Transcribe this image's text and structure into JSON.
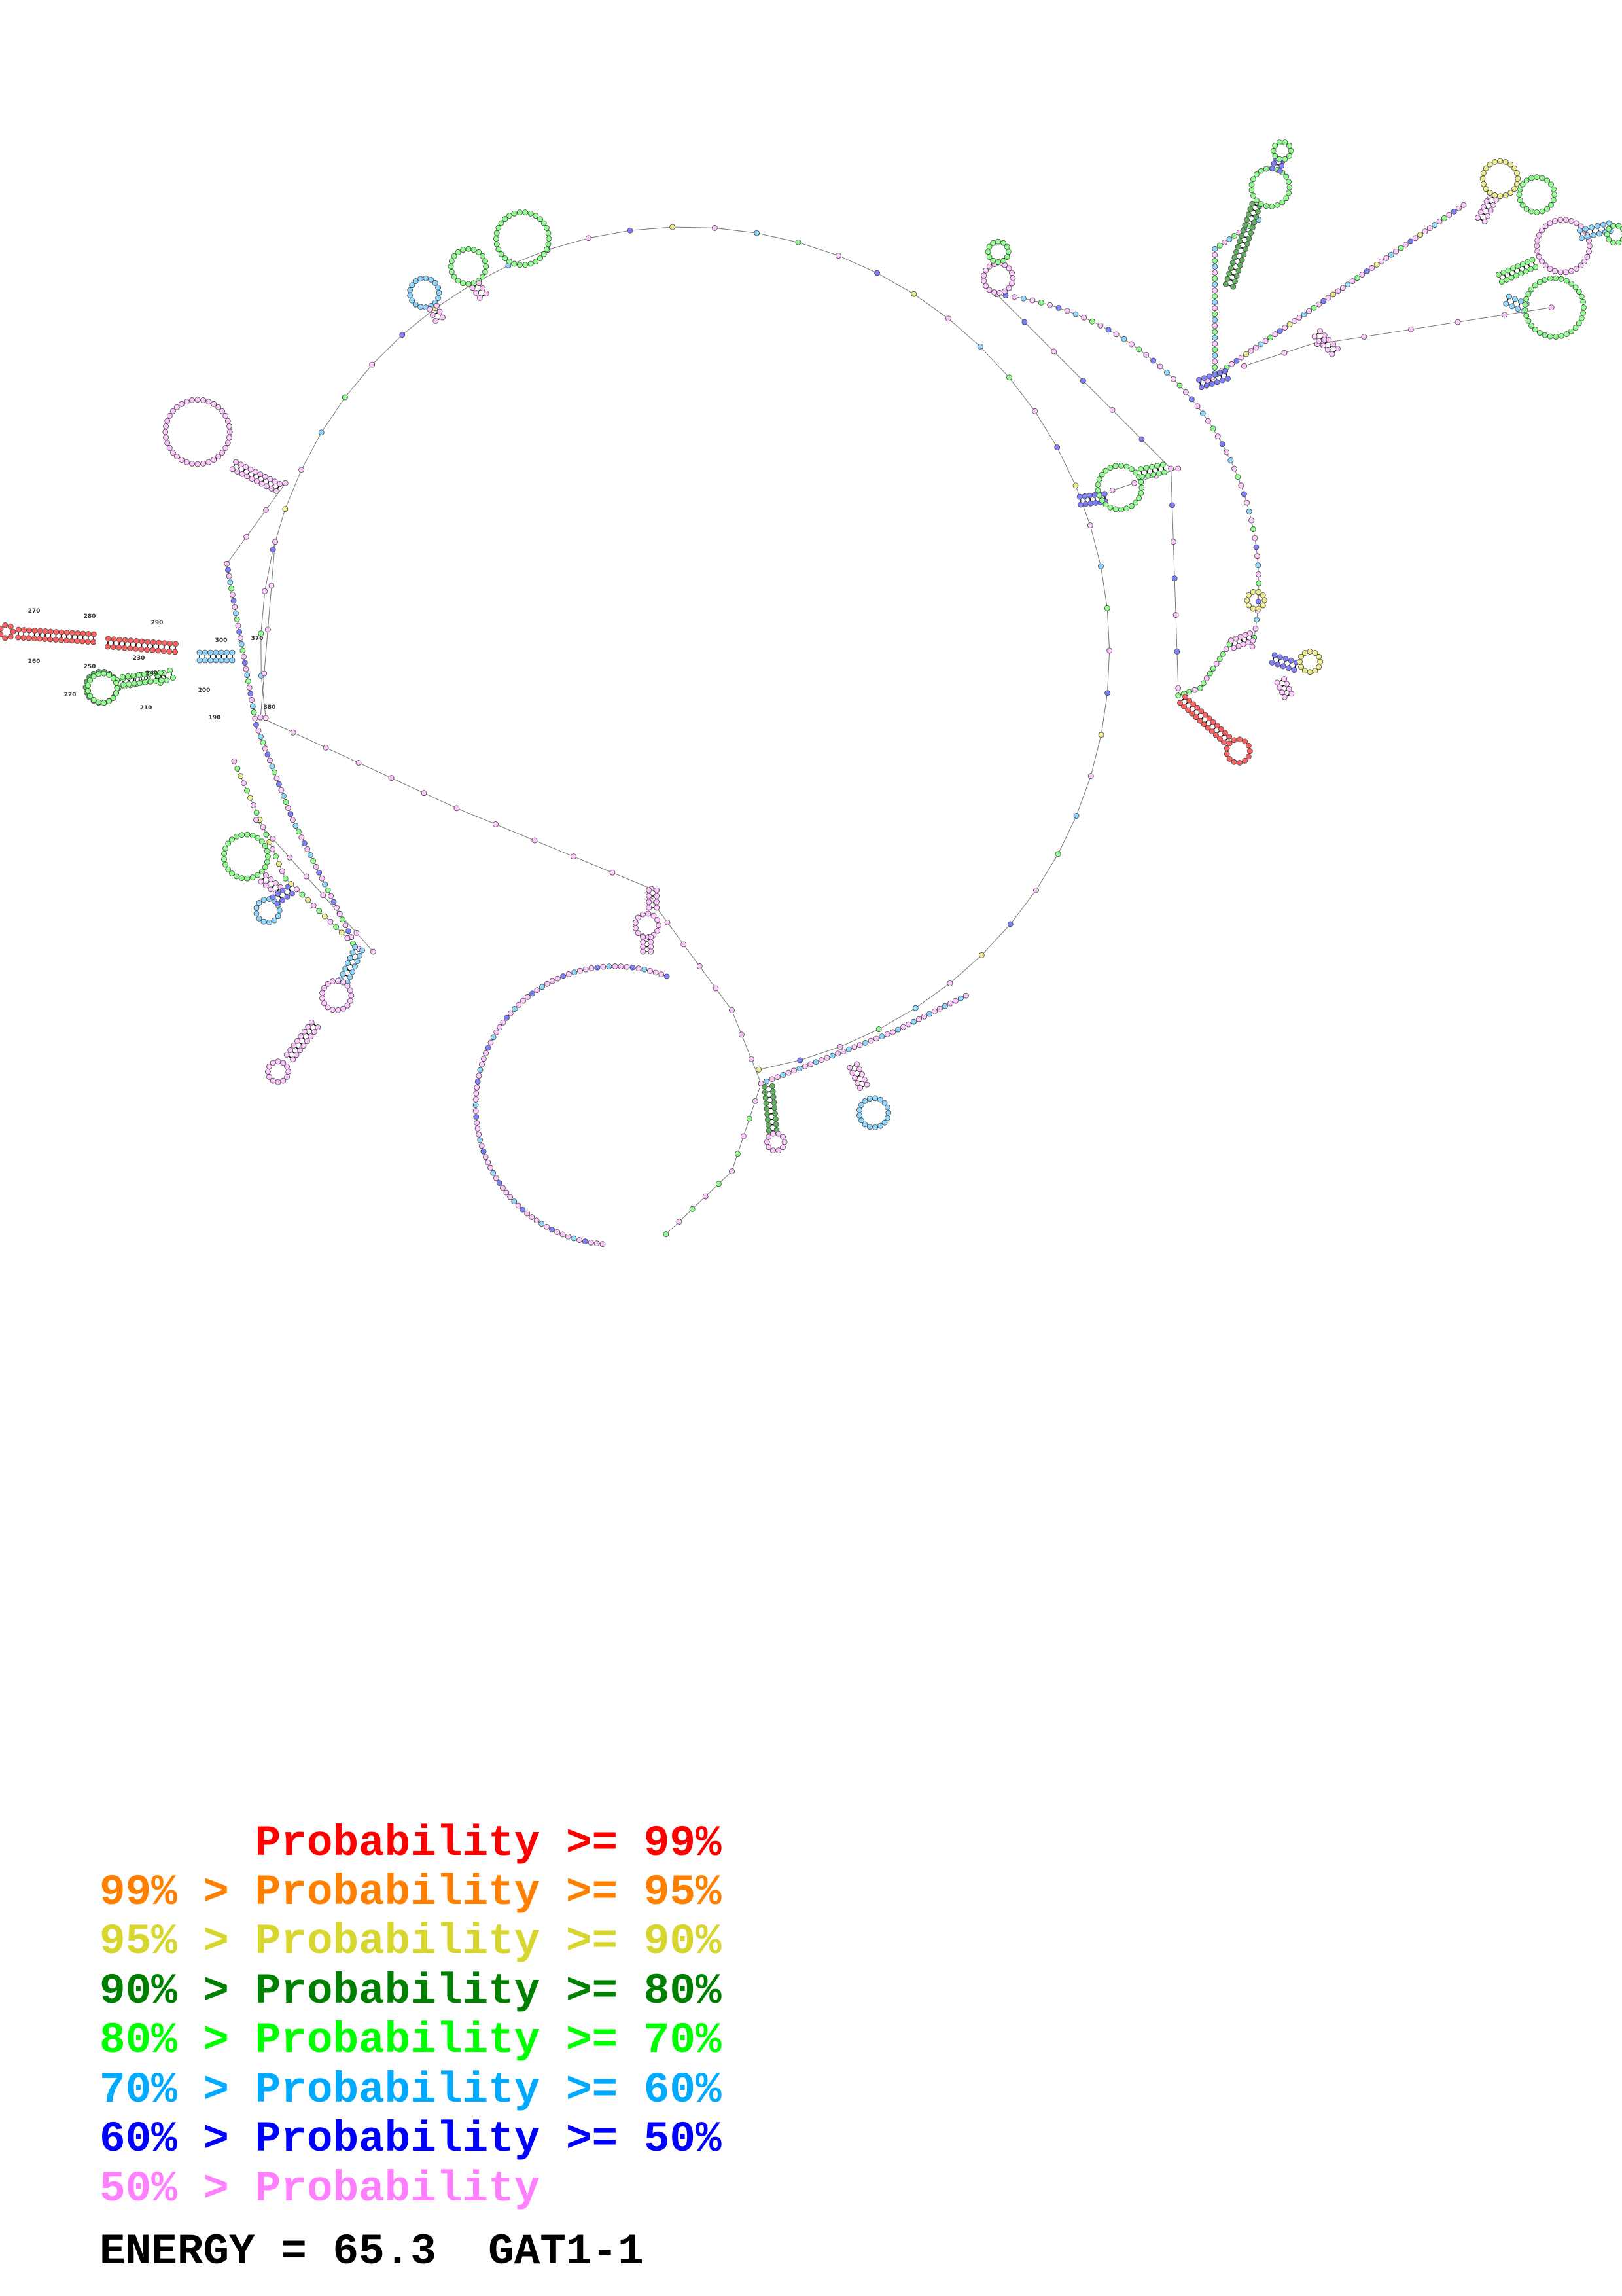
{
  "legend": [
    {
      "text": "      Probability >= 99%",
      "color": "#ff0000"
    },
    {
      "text": "99% > Probability >= 95%",
      "color": "#ff8000"
    },
    {
      "text": "95% > Probability >= 90%",
      "color": "#d6d62e"
    },
    {
      "text": "90% > Probability >= 80%",
      "color": "#008000"
    },
    {
      "text": "80% > Probability >= 70%",
      "color": "#00ff00"
    },
    {
      "text": "70% > Probability >= 60%",
      "color": "#00aaff"
    },
    {
      "text": "60% > Probability >= 50%",
      "color": "#0000ff"
    },
    {
      "text": "50% > Probability",
      "color": "#ff80ff"
    }
  ],
  "footer": {
    "energy": "ENERGY = 65.3  GAT1-1"
  },
  "position_labels": [
    "270",
    "280",
    "290",
    "300",
    "370",
    "260",
    "250",
    "230",
    "240",
    "200",
    "220",
    "210",
    "190",
    "380"
  ]
}
